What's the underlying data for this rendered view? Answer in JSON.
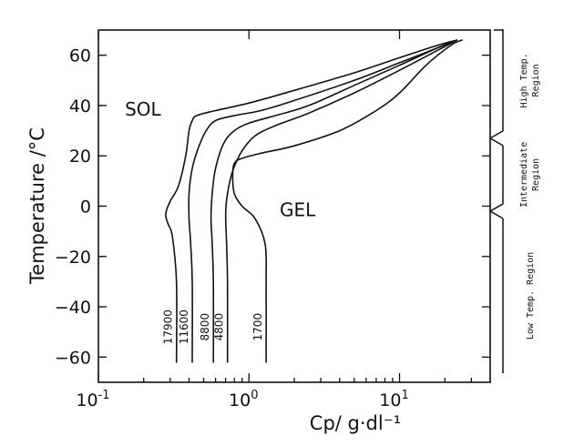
{
  "chart_data": {
    "type": "line",
    "title": "",
    "xlabel": "Cp/ g·dl⁻¹",
    "ylabel": "Temperature /°C",
    "x_scale": "log",
    "xlim": [
      0.1,
      40
    ],
    "ylim": [
      -70,
      70
    ],
    "x_ticks": [
      {
        "value": 0.1,
        "base": "10",
        "exp": "-1"
      },
      {
        "value": 1,
        "base": "10",
        "exp": "0"
      },
      {
        "value": 10,
        "base": "10",
        "exp": "1"
      }
    ],
    "y_ticks": [
      60,
      40,
      20,
      0,
      -20,
      -40,
      -60
    ],
    "y_tick_labels": [
      "60",
      "40",
      "20",
      "0",
      "−20",
      "−40",
      "−60"
    ],
    "annotations": [
      {
        "text": "SOL",
        "x": 0.15,
        "y": 36
      },
      {
        "text": "GEL",
        "x": 1.6,
        "y": -4
      }
    ],
    "regions": [
      {
        "label": "High Temp. Region",
        "y_from": 27,
        "y_to": 70
      },
      {
        "label": "Intermediate Region",
        "y_from": -2,
        "y_to": 27
      },
      {
        "label": "Low Temp. Region",
        "y_from": -70,
        "y_to": -2
      }
    ],
    "series": [
      {
        "name": "17900",
        "x": [
          0.33,
          0.33,
          0.31,
          0.29,
          0.28,
          0.3,
          0.34,
          0.38,
          0.4,
          0.42,
          0.45,
          0.6,
          1.0,
          2.0,
          5.0,
          10.0,
          18.0,
          24.0
        ],
        "y": [
          -62,
          -30,
          -12,
          -7,
          -3,
          2,
          8,
          20,
          30,
          34,
          36,
          38,
          41,
          46,
          53,
          59,
          64,
          66
        ]
      },
      {
        "name": "11600",
        "x": [
          0.42,
          0.42,
          0.41,
          0.4,
          0.4,
          0.42,
          0.46,
          0.52,
          0.6,
          0.8,
          1.2,
          2.0,
          5.0,
          10.0,
          18.0,
          24.0
        ],
        "y": [
          -62,
          -30,
          -15,
          -5,
          5,
          15,
          23,
          30,
          34,
          36,
          38,
          42,
          50,
          57,
          63,
          66
        ]
      },
      {
        "name": "8800",
        "x": [
          0.58,
          0.58,
          0.57,
          0.56,
          0.57,
          0.6,
          0.68,
          0.8,
          1.0,
          1.5,
          2.5,
          5.0,
          10.0,
          18.0,
          24.0
        ],
        "y": [
          -62,
          -30,
          -15,
          -5,
          5,
          15,
          25,
          30,
          33,
          36,
          40,
          48,
          56,
          63,
          66
        ]
      },
      {
        "name": "4800",
        "x": [
          0.72,
          0.72,
          0.71,
          0.7,
          0.72,
          0.78,
          0.9,
          1.1,
          1.5,
          2.5,
          5.0,
          10.0,
          18.0,
          24.0
        ],
        "y": [
          -62,
          -30,
          -15,
          -3,
          5,
          14,
          22,
          28,
          32,
          37,
          45,
          54,
          62,
          66
        ]
      },
      {
        "name": "1700",
        "x": [
          1.3,
          1.3,
          1.28,
          1.1,
          0.9,
          0.8,
          0.78,
          0.8,
          0.9,
          1.2,
          2.0,
          4.0,
          7.0,
          10.0,
          15.0,
          22.0,
          26.0
        ],
        "y": [
          -62,
          -30,
          -15,
          -5,
          0,
          5,
          12,
          17,
          19,
          21,
          24,
          30,
          38,
          45,
          56,
          64,
          66
        ]
      }
    ]
  }
}
